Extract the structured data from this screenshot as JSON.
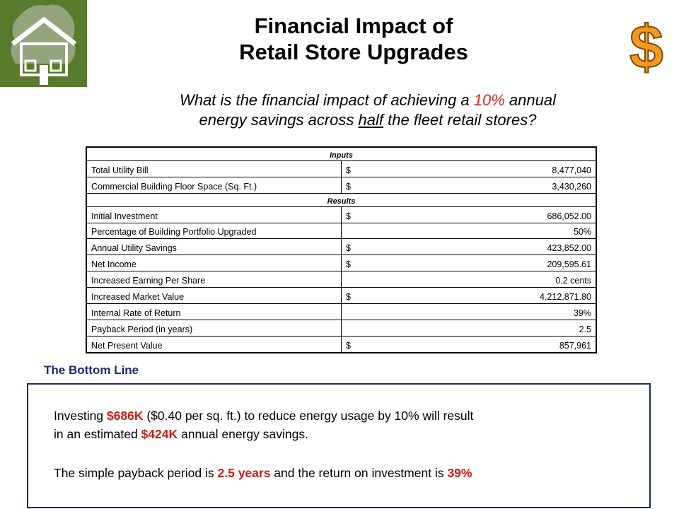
{
  "title": {
    "line1": "Financial Impact of",
    "line2": "Retail Store Upgrades"
  },
  "subtitle": {
    "part1": "What is the financial impact of achieving a ",
    "percent": "10%",
    "part2": " annual",
    "part3": "energy savings across ",
    "underlined": "half",
    "part4": " the fleet retail stores?"
  },
  "dollar_logo": {
    "text": "$"
  },
  "table": {
    "inputs_header": "Inputs",
    "results_header": "Results",
    "inputs": [
      {
        "label": "Total Utility Bill",
        "currency": "$",
        "value": "8,477,040"
      },
      {
        "label": "Commercial Building Floor Space (Sq. Ft.)",
        "currency": "$",
        "value": "3,430,260"
      }
    ],
    "results": [
      {
        "label": "Initial Investment",
        "currency": "$",
        "value": "686,052.00"
      },
      {
        "label": "Percentage of Building Portfolio Upgraded",
        "currency": "",
        "value": "50%"
      },
      {
        "label": "Annual Utility Savings",
        "currency": "$",
        "value": "423,852.00"
      },
      {
        "label": "Net Income",
        "currency": "$",
        "value": "209,595.61"
      },
      {
        "label": "Increased Earning Per Share",
        "currency": "",
        "value": "0.2 cents"
      },
      {
        "label": "Increased Market Value",
        "currency": "$",
        "value": "4,212,871.80"
      },
      {
        "label": "Internal Rate of Return",
        "currency": "",
        "value": "39%"
      },
      {
        "label": "Payback Period (in years)",
        "currency": "",
        "value": "2.5"
      },
      {
        "label": "Net Present Value",
        "currency": "$",
        "value": "857,961"
      }
    ]
  },
  "bottom_line": {
    "heading": "The Bottom Line",
    "p1_a": "Investing ",
    "p1_b": "$686K",
    "p1_c": " ($0.40 per sq. ft.) to reduce energy usage by 10% will result",
    "p1_d": "in an estimated ",
    "p1_e": "$424K",
    "p1_f": " annual energy savings.",
    "p2_a": "The simple payback period is ",
    "p2_b": "2.5 years",
    "p2_c": " and the return on investment is ",
    "p2_d": "39%"
  },
  "colors": {
    "accent_red": "#d9261c",
    "navy": "#1a2a6c",
    "logo_green": "#5a7a2e",
    "dollar_orange": "#f39a1e"
  }
}
